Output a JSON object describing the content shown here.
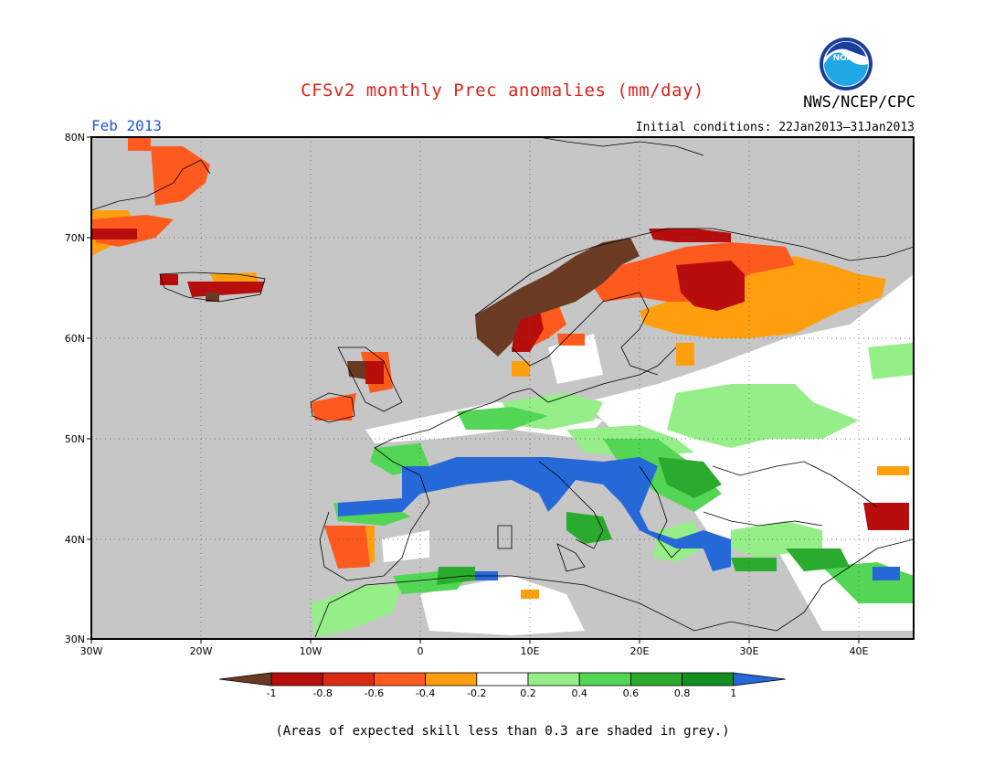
{
  "header": {
    "title": "CFSv2 monthly Prec anomalies (mm/day)",
    "agency": "NWS/NCEP/CPC",
    "logo_text": "NOAA",
    "month": "Feb 2013",
    "initial_conditions": "Initial conditions: 22Jan2013–31Jan2013"
  },
  "map": {
    "lon_range": [
      -30,
      45
    ],
    "lat_range": [
      30,
      80
    ],
    "x_ticks": [
      "30W",
      "20W",
      "10W",
      "0",
      "10E",
      "20E",
      "30E",
      "40E"
    ],
    "y_ticks": [
      "30N",
      "40N",
      "50N",
      "60N",
      "70N",
      "80N"
    ],
    "grid": "dotted",
    "background": "#c6c6c6"
  },
  "colorbar": {
    "labels": [
      "-1",
      "-0.8",
      "-0.6",
      "-0.4",
      "-0.2",
      "0.2",
      "0.4",
      "0.6",
      "0.8",
      "1"
    ],
    "colors": [
      "#6a3b22",
      "#b80d0d",
      "#dc2b14",
      "#ff5a1e",
      "#ff9f10",
      "#ffffff",
      "#95ee88",
      "#53d656",
      "#2aab2e",
      "#139020",
      "#2568d8"
    ]
  },
  "footnote": "(Areas of expected skill less than 0.3 are shaded in grey.)"
}
